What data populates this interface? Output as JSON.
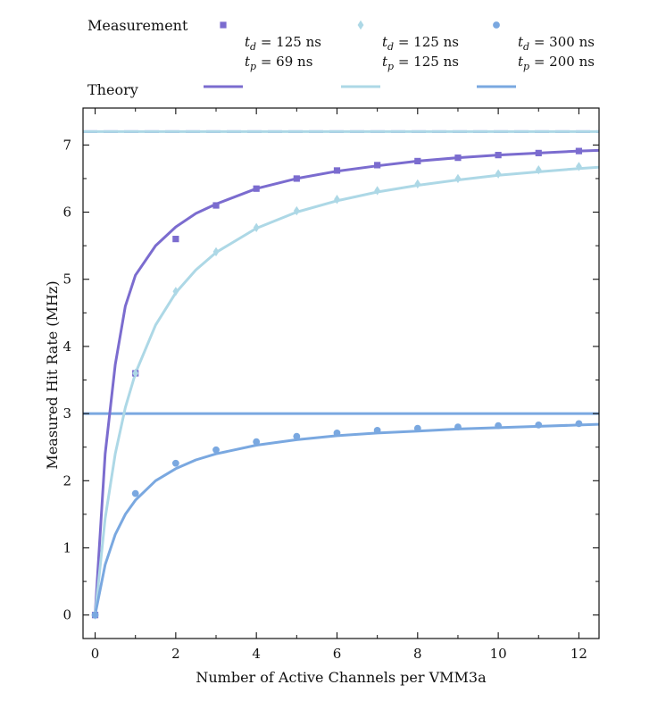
{
  "chart_data": {
    "type": "line",
    "title": "",
    "xlabel": "Number of Active Channels per VMM3a",
    "ylabel": "Measured Hit Rate (MHz)",
    "xlim": [
      -0.3,
      12.5
    ],
    "ylim": [
      -0.35,
      7.55
    ],
    "xticks": [
      0,
      2,
      4,
      6,
      8,
      10,
      12
    ],
    "yticks": [
      0,
      1,
      2,
      3,
      4,
      5,
      6,
      7
    ],
    "grid": false,
    "legend": {
      "measurement_label": "Measurement",
      "theory_label": "Theory",
      "placement": "top"
    },
    "series": [
      {
        "name": "td=125ns tp=69ns",
        "td_label": "t_d = 125 ns",
        "tp_label": "t_p = 69 ns",
        "color": "#7b6ccf",
        "marker": "square",
        "x": [
          0,
          1,
          2,
          3,
          4,
          5,
          6,
          7,
          8,
          9,
          10,
          11,
          12
        ],
        "values": [
          0,
          3.6,
          5.6,
          6.1,
          6.35,
          6.5,
          6.62,
          6.7,
          6.76,
          6.81,
          6.85,
          6.88,
          6.91
        ],
        "theory_asymptote": 7.2,
        "theory_x": [
          0,
          0.25,
          0.5,
          0.75,
          1,
          1.5,
          2,
          2.5,
          3,
          4,
          5,
          6,
          7,
          8,
          9,
          10,
          11,
          12,
          12.5
        ],
        "theory_values": [
          0,
          2.4,
          3.73,
          4.6,
          5.06,
          5.5,
          5.78,
          5.98,
          6.12,
          6.35,
          6.5,
          6.61,
          6.69,
          6.76,
          6.81,
          6.85,
          6.88,
          6.91,
          6.92
        ]
      },
      {
        "name": "td=125ns tp=125ns",
        "td_label": "t_d = 125 ns",
        "tp_label": "t_p = 125 ns",
        "color": "#add8e6",
        "marker": "diamond",
        "x": [
          0,
          1,
          2,
          3,
          4,
          5,
          6,
          7,
          8,
          9,
          10,
          11,
          12
        ],
        "values": [
          0,
          3.6,
          4.82,
          5.41,
          5.77,
          6.02,
          6.19,
          6.32,
          6.42,
          6.5,
          6.57,
          6.63,
          6.68
        ],
        "theory_asymptote": 7.2,
        "theory_x": [
          0,
          0.25,
          0.5,
          0.75,
          1,
          1.5,
          2,
          2.5,
          3,
          4,
          5,
          6,
          7,
          8,
          9,
          10,
          11,
          12,
          12.5
        ],
        "theory_values": [
          0,
          1.44,
          2.4,
          3.09,
          3.6,
          4.32,
          4.8,
          5.14,
          5.4,
          5.76,
          6.0,
          6.17,
          6.3,
          6.4,
          6.48,
          6.55,
          6.6,
          6.65,
          6.67
        ]
      },
      {
        "name": "td=300ns tp=200ns",
        "td_label": "t_d = 300 ns",
        "tp_label": "t_p = 200 ns",
        "color": "#7aa8e0",
        "marker": "circle",
        "x": [
          0,
          1,
          2,
          3,
          4,
          5,
          6,
          7,
          8,
          9,
          10,
          11,
          12
        ],
        "values": [
          0,
          1.81,
          2.26,
          2.46,
          2.58,
          2.66,
          2.71,
          2.75,
          2.78,
          2.8,
          2.82,
          2.83,
          2.85
        ],
        "theory_asymptote": 3.0,
        "theory_x": [
          0,
          0.25,
          0.5,
          0.75,
          1,
          1.5,
          2,
          2.5,
          3,
          4,
          5,
          6,
          7,
          8,
          9,
          10,
          11,
          12,
          12.5
        ],
        "theory_values": [
          0,
          0.75,
          1.2,
          1.5,
          1.71,
          2.0,
          2.18,
          2.31,
          2.4,
          2.53,
          2.61,
          2.67,
          2.71,
          2.74,
          2.77,
          2.79,
          2.81,
          2.83,
          2.84
        ]
      }
    ]
  }
}
